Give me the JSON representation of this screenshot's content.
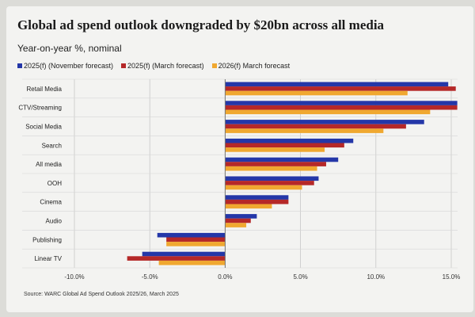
{
  "chart_data": {
    "type": "bar",
    "orientation": "horizontal",
    "title": "Global ad spend outlook downgraded by $20bn across all media",
    "subtitle": "Year-on-year %, nominal",
    "categories": [
      "Retail Media",
      "CTV/Streaming",
      "Social Media",
      "Search",
      "All media",
      "OOH",
      "Cinema",
      "Audio",
      "Publishing",
      "Linear TV"
    ],
    "series": [
      {
        "name": "2025(f) (November forecast)",
        "color": "#2437a8",
        "values": [
          14.8,
          15.4,
          13.2,
          8.5,
          7.5,
          6.2,
          4.2,
          2.1,
          -4.5,
          -5.5
        ]
      },
      {
        "name": "2025(f) (March forecast)",
        "color": "#b52828",
        "values": [
          15.3,
          15.4,
          12.0,
          7.9,
          6.7,
          5.9,
          4.2,
          1.7,
          -3.9,
          -6.5
        ]
      },
      {
        "name": "2026(f) March forecast",
        "color": "#f0a830",
        "values": [
          12.1,
          13.6,
          10.5,
          6.6,
          6.1,
          5.1,
          3.1,
          1.4,
          -3.9,
          -4.4
        ]
      }
    ],
    "xlim": [
      -10,
      15
    ],
    "xticks": [
      -10,
      -5,
      0,
      5,
      10,
      15
    ],
    "xtick_labels": [
      "-10.0%",
      "-5.0%",
      "0.0%",
      "5.0%",
      "10.0%",
      "15.0%"
    ],
    "grid": true,
    "legend_position": "top-left",
    "source": "Source: WARC Global Ad Spend Outlook 2025/26, March 2025"
  }
}
